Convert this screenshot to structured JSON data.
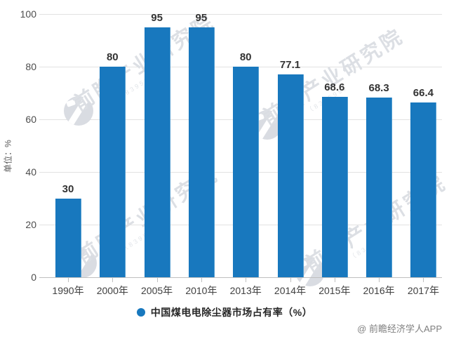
{
  "chart_data": {
    "type": "bar",
    "categories": [
      "1990年",
      "2000年",
      "2005年",
      "2010年",
      "2013年",
      "2014年",
      "2015年",
      "2016年",
      "2017年"
    ],
    "values": [
      30,
      80,
      95,
      95,
      80,
      77.1,
      68.6,
      68.3,
      66.4
    ],
    "value_labels": [
      "30",
      "80",
      "95",
      "95",
      "80",
      "77.1",
      "68.6",
      "68.3",
      "66.4"
    ],
    "series_name": "中国煤电电除尘器市场占有率（%）",
    "title": "",
    "xlabel": "",
    "ylabel": "单位：%",
    "ylim": [
      0,
      100
    ],
    "yticks": [
      0,
      20,
      40,
      60,
      80,
      100
    ],
    "grid": true,
    "legend_position": "bottom",
    "bar_color": "#1878be"
  },
  "legend": {
    "label": "中国煤电电除尘器市场占有率（%）"
  },
  "axis": {
    "unit_label": "单位：%"
  },
  "attribution": "@ 前瞻经济学人APP",
  "watermark": {
    "brand": "前瞻产业研究院",
    "code": "（839599）"
  },
  "colors": {
    "bar": "#1878be",
    "grid": "#e2e2e2",
    "axis": "#bfbfbf",
    "value_label": "#333333",
    "tick_label": "#4d4d4d",
    "watermark": "#dcdfe4"
  }
}
